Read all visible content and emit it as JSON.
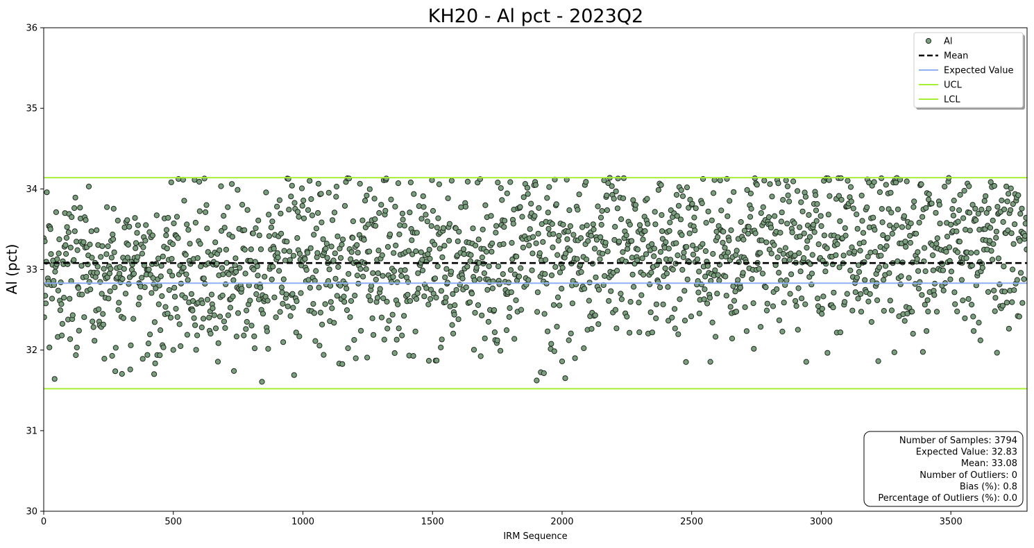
{
  "chart_data": {
    "type": "scatter",
    "title": "KH20 - Al pct - 2023Q2",
    "xlabel": "IRM Sequence",
    "ylabel": "Al (pct)",
    "xlim": [
      0,
      3794
    ],
    "ylim": [
      30,
      36
    ],
    "x_ticks": [
      0,
      500,
      1000,
      1500,
      2000,
      2500,
      3000,
      3500
    ],
    "y_ticks": [
      30,
      31,
      32,
      33,
      34,
      35,
      36
    ],
    "grid": false,
    "series": [
      {
        "name": "Al",
        "kind": "scatter",
        "color": "#7a9e7e",
        "edge_color": "#1f2a1f",
        "n_points": 3794,
        "value_range": [
          31.6,
          34.14
        ],
        "note": "dense cloud of samples, approx. uniform x coverage; points rendered procedurally"
      }
    ],
    "reference_lines": [
      {
        "name": "Mean",
        "y": 33.08,
        "color": "#000000",
        "style": "dashed"
      },
      {
        "name": "Expected Value",
        "y": 32.83,
        "color": "#8fb0f5",
        "style": "solid"
      },
      {
        "name": "UCL",
        "y": 34.14,
        "color": "#a6f034",
        "style": "solid"
      },
      {
        "name": "LCL",
        "y": 31.52,
        "color": "#a6f034",
        "style": "solid"
      }
    ],
    "legend": {
      "placement": "top-right",
      "entries": [
        "Al",
        "Mean",
        "Expected Value",
        "UCL",
        "LCL"
      ]
    },
    "stats_box": {
      "placement": "bottom-right",
      "lines": [
        "Number of Samples: 3794",
        "Expected Value: 32.83",
        "Mean: 33.08",
        "Number of Outliers: 0",
        "Bias (%): 0.8",
        "Percentage of Outliers (%): 0.0"
      ]
    }
  }
}
